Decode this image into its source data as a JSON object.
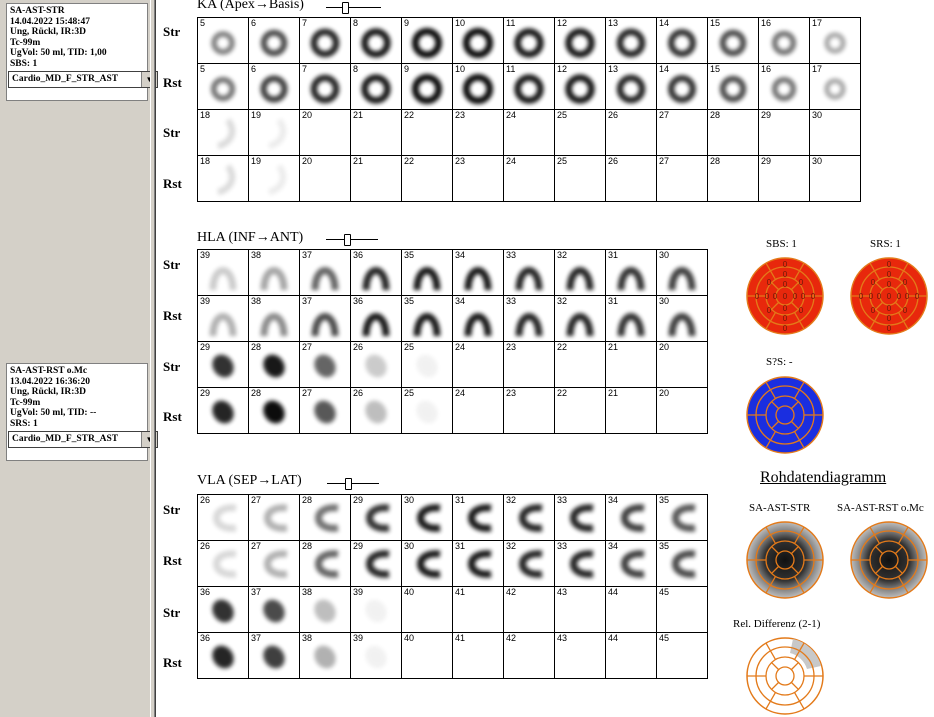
{
  "sidebar": {
    "study1": {
      "lines": [
        "SA-AST-STR",
        "14.04.2022 15:48:47",
        "Ung, Rückl, IR:3D",
        "Tc-99m",
        "UgVol: 50 ml,   TID: 1,00",
        "SBS: 1"
      ],
      "select_value": "Cardio_MD_F_STR_AST"
    },
    "study2": {
      "lines": [
        "SA-AST-RST o.Mc",
        "13.04.2022 16:36:20",
        "Ung, Rückl, IR:3D",
        "Tc-99m",
        "UgVol: 50 ml,   TID: --",
        "SRS: 1"
      ],
      "select_value": "Cardio_MD_F_STR_AST"
    }
  },
  "sections": {
    "ka": {
      "title": "KA (Apex→Basis)",
      "row_labels": [
        "Str",
        "Rst",
        "Str",
        "Rst"
      ],
      "rows": [
        {
          "nums": [
            "5",
            "6",
            "7",
            "8",
            "9",
            "10",
            "11",
            "12",
            "13",
            "14",
            "15",
            "16",
            "17"
          ],
          "shape": "ring",
          "int": [
            0.5,
            0.7,
            0.85,
            0.9,
            0.95,
            0.95,
            0.9,
            0.9,
            0.85,
            0.8,
            0.7,
            0.55,
            0.35
          ]
        },
        {
          "nums": [
            "5",
            "6",
            "7",
            "8",
            "9",
            "10",
            "11",
            "12",
            "13",
            "14",
            "15",
            "16",
            "17"
          ],
          "shape": "ring",
          "int": [
            0.55,
            0.75,
            0.85,
            0.9,
            0.95,
            0.95,
            0.9,
            0.9,
            0.85,
            0.8,
            0.7,
            0.55,
            0.35
          ]
        },
        {
          "nums": [
            "18",
            "19",
            "20",
            "21",
            "22",
            "23",
            "24",
            "25",
            "26",
            "27",
            "28",
            "29",
            "30"
          ],
          "shape": "faint",
          "int": [
            0.15,
            0.08,
            0,
            0,
            0,
            0,
            0,
            0,
            0,
            0,
            0,
            0,
            0
          ]
        },
        {
          "nums": [
            "18",
            "19",
            "20",
            "21",
            "22",
            "23",
            "24",
            "25",
            "26",
            "27",
            "28",
            "29",
            "30"
          ],
          "shape": "faint",
          "int": [
            0.15,
            0.08,
            0,
            0,
            0,
            0,
            0,
            0,
            0,
            0,
            0,
            0,
            0
          ]
        }
      ]
    },
    "hla": {
      "title": "HLA (INF→ANT)",
      "row_labels": [
        "Str",
        "Rst",
        "Str",
        "Rst"
      ],
      "rows": [
        {
          "nums": [
            "39",
            "38",
            "37",
            "36",
            "35",
            "34",
            "33",
            "32",
            "31",
            "30"
          ],
          "shape": "arch",
          "int": [
            0.2,
            0.35,
            0.6,
            0.85,
            0.9,
            0.9,
            0.85,
            0.85,
            0.8,
            0.75
          ]
        },
        {
          "nums": [
            "39",
            "38",
            "37",
            "36",
            "35",
            "34",
            "33",
            "32",
            "31",
            "30"
          ],
          "shape": "arch",
          "int": [
            0.3,
            0.45,
            0.7,
            0.9,
            0.9,
            0.9,
            0.85,
            0.85,
            0.8,
            0.75
          ]
        },
        {
          "nums": [
            "29",
            "28",
            "27",
            "26",
            "25",
            "24",
            "23",
            "22",
            "21",
            "20"
          ],
          "shape": "blob",
          "int": [
            0.8,
            0.9,
            0.6,
            0.2,
            0.05,
            0,
            0,
            0,
            0,
            0
          ]
        },
        {
          "nums": [
            "29",
            "28",
            "27",
            "26",
            "25",
            "24",
            "23",
            "22",
            "21",
            "20"
          ],
          "shape": "blob",
          "int": [
            0.85,
            0.95,
            0.65,
            0.25,
            0.05,
            0,
            0,
            0,
            0,
            0
          ]
        }
      ]
    },
    "vla": {
      "title": "VLA (SEP→LAT)",
      "row_labels": [
        "Str",
        "Rst",
        "Str",
        "Rst"
      ],
      "rows": [
        {
          "nums": [
            "26",
            "27",
            "28",
            "29",
            "30",
            "31",
            "32",
            "33",
            "34",
            "35"
          ],
          "shape": "cshape",
          "int": [
            0.15,
            0.3,
            0.55,
            0.8,
            0.9,
            0.9,
            0.85,
            0.85,
            0.75,
            0.65
          ]
        },
        {
          "nums": [
            "26",
            "27",
            "28",
            "29",
            "30",
            "31",
            "32",
            "33",
            "34",
            "35"
          ],
          "shape": "cshape",
          "int": [
            0.15,
            0.3,
            0.6,
            0.85,
            0.9,
            0.9,
            0.85,
            0.85,
            0.75,
            0.7
          ]
        },
        {
          "nums": [
            "36",
            "37",
            "38",
            "39",
            "40",
            "41",
            "42",
            "43",
            "44",
            "45"
          ],
          "shape": "blob",
          "int": [
            0.8,
            0.7,
            0.25,
            0.05,
            0,
            0,
            0,
            0,
            0,
            0
          ]
        },
        {
          "nums": [
            "36",
            "37",
            "38",
            "39",
            "40",
            "41",
            "42",
            "43",
            "44",
            "45"
          ],
          "shape": "blob",
          "int": [
            0.85,
            0.75,
            0.3,
            0.05,
            0,
            0,
            0,
            0,
            0,
            0
          ]
        }
      ]
    }
  },
  "polar": {
    "sbs_label": "SBS: 1",
    "srs_label": "SRS: 1",
    "sds_label": "S?S: -",
    "colors": {
      "red": "#e8280c",
      "blue": "#1a2ee0",
      "orange": "#e37a1a"
    }
  },
  "rohdaten": {
    "title": "Rohdatendiagramm",
    "label_str": "SA-AST-STR",
    "label_rst": "SA-AST-RST o.Mc",
    "label_diff": "Rel. Differenz (2-1)"
  }
}
